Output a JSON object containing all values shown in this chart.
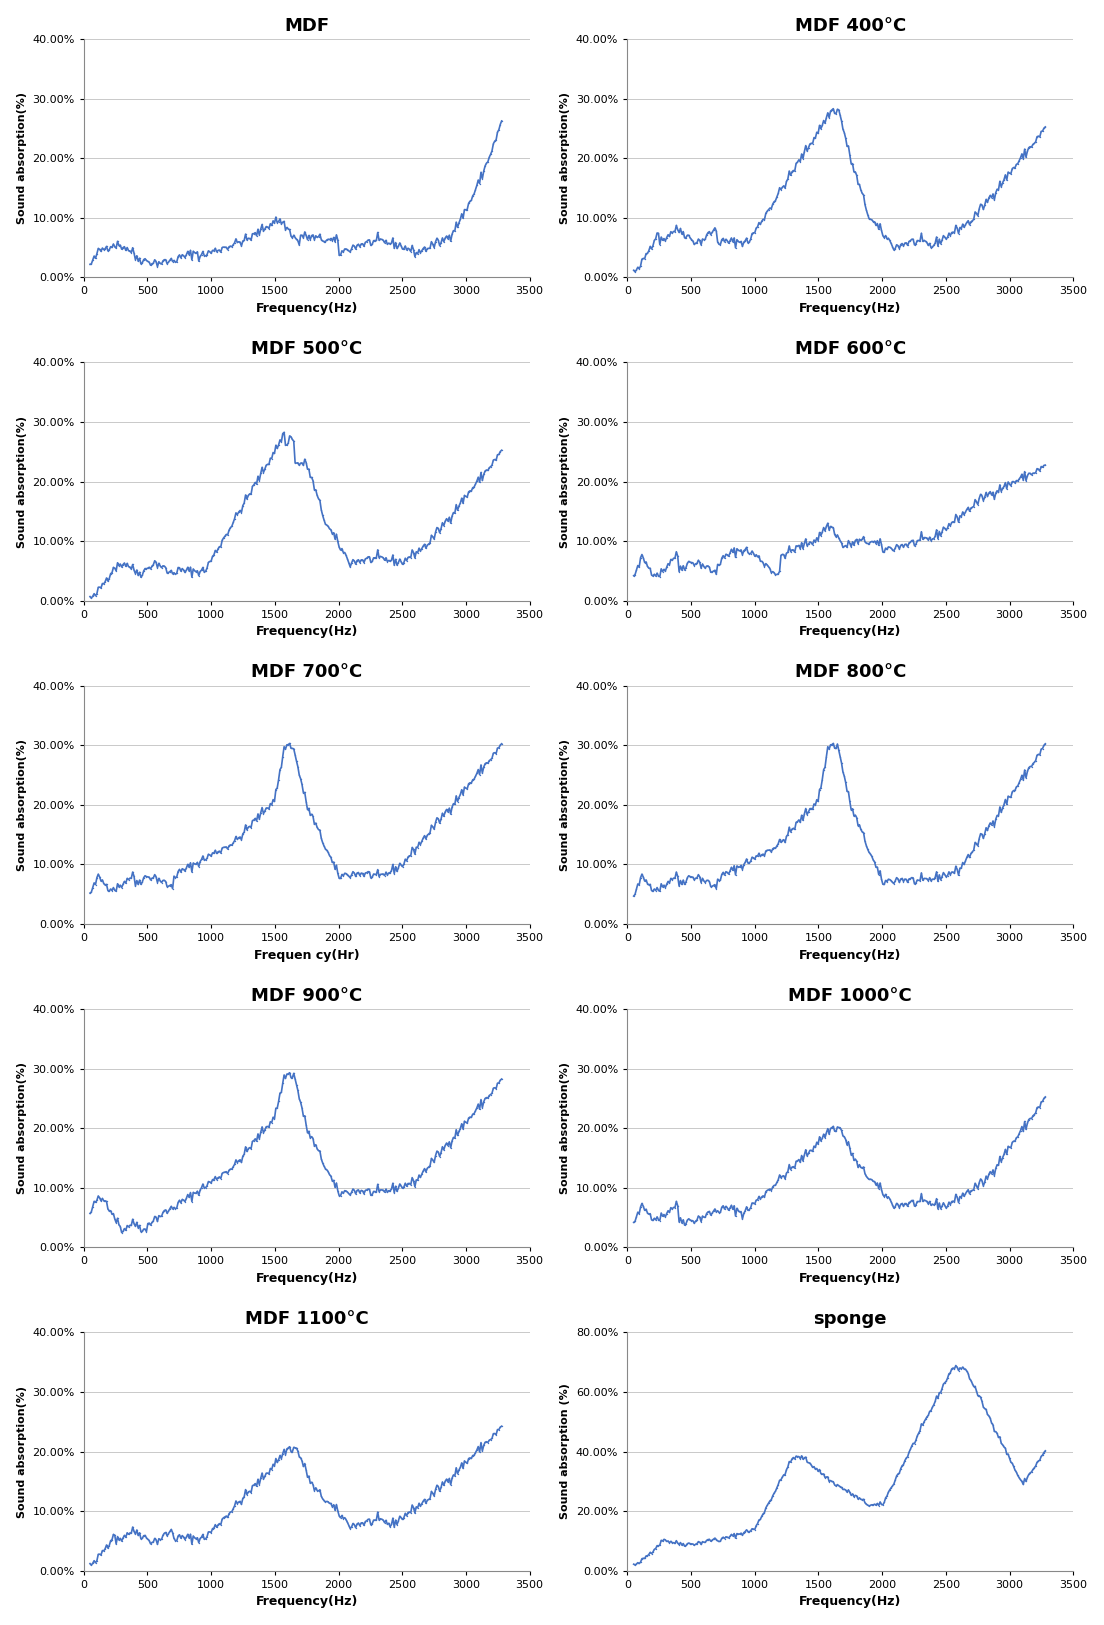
{
  "panels": [
    {
      "title": "MDF",
      "xlabel": "Frequency(Hz)",
      "ylabel": "Sound absorption(%)",
      "xlim": [
        0,
        3500
      ],
      "ylim": [
        0,
        0.4
      ],
      "yticks": [
        0.0,
        0.1,
        0.2,
        0.3,
        0.4
      ],
      "xticks": [
        0,
        500,
        1000,
        1500,
        2000,
        2500,
        3000,
        3500
      ],
      "curve_type": "MDF"
    },
    {
      "title": "MDF 400°C",
      "xlabel": "Frequency(Hz)",
      "ylabel": "Sound absorption(%)",
      "xlim": [
        0,
        3500
      ],
      "ylim": [
        0,
        0.4
      ],
      "yticks": [
        0.0,
        0.1,
        0.2,
        0.3,
        0.4
      ],
      "xticks": [
        0,
        500,
        1000,
        1500,
        2000,
        2500,
        3000,
        3500
      ],
      "curve_type": "MDF400"
    },
    {
      "title": "MDF 500°C",
      "xlabel": "Frequency(Hz)",
      "ylabel": "Sound absorption(%)",
      "xlim": [
        0,
        3500
      ],
      "ylim": [
        0,
        0.4
      ],
      "yticks": [
        0.0,
        0.1,
        0.2,
        0.3,
        0.4
      ],
      "xticks": [
        0,
        500,
        1000,
        1500,
        2000,
        2500,
        3000,
        3500
      ],
      "curve_type": "MDF500"
    },
    {
      "title": "MDF 600°C",
      "xlabel": "Frequency(Hz)",
      "ylabel": "Sound absorption(%)",
      "xlim": [
        0,
        3500
      ],
      "ylim": [
        0,
        0.4
      ],
      "yticks": [
        0.0,
        0.1,
        0.2,
        0.3,
        0.4
      ],
      "xticks": [
        0,
        500,
        1000,
        1500,
        2000,
        2500,
        3000,
        3500
      ],
      "curve_type": "MDF600"
    },
    {
      "title": "MDF 700°C",
      "xlabel": "Frequen cy(Hr)",
      "ylabel": "Sound absorption(%)",
      "xlim": [
        0,
        3500
      ],
      "ylim": [
        0,
        0.4
      ],
      "yticks": [
        0.0,
        0.1,
        0.2,
        0.3,
        0.4
      ],
      "xticks": [
        0,
        500,
        1000,
        1500,
        2000,
        2500,
        3000,
        3500
      ],
      "curve_type": "MDF700"
    },
    {
      "title": "MDF 800°C",
      "xlabel": "Frequency(Hz)",
      "ylabel": "Sound absorption(%)",
      "xlim": [
        0,
        3500
      ],
      "ylim": [
        0,
        0.4
      ],
      "yticks": [
        0.0,
        0.1,
        0.2,
        0.3,
        0.4
      ],
      "xticks": [
        0,
        500,
        1000,
        1500,
        2000,
        2500,
        3000,
        3500
      ],
      "curve_type": "MDF800"
    },
    {
      "title": "MDF 900°C",
      "xlabel": "Frequency(Hz)",
      "ylabel": "Sound absorption(%)",
      "xlim": [
        0,
        3500
      ],
      "ylim": [
        0,
        0.4
      ],
      "yticks": [
        0.0,
        0.1,
        0.2,
        0.3,
        0.4
      ],
      "xticks": [
        0,
        500,
        1000,
        1500,
        2000,
        2500,
        3000,
        3500
      ],
      "curve_type": "MDF900"
    },
    {
      "title": "MDF 1000°C",
      "xlabel": "Frequency(Hz)",
      "ylabel": "Sound absorption(%)",
      "xlim": [
        0,
        3500
      ],
      "ylim": [
        0,
        0.4
      ],
      "yticks": [
        0.0,
        0.1,
        0.2,
        0.3,
        0.4
      ],
      "xticks": [
        0,
        500,
        1000,
        1500,
        2000,
        2500,
        3000,
        3500
      ],
      "curve_type": "MDF1000"
    },
    {
      "title": "MDF 1100°C",
      "xlabel": "Frequency(Hz)",
      "ylabel": "Sound absorption(%)",
      "xlim": [
        0,
        3500
      ],
      "ylim": [
        0,
        0.4
      ],
      "yticks": [
        0.0,
        0.1,
        0.2,
        0.3,
        0.4
      ],
      "xticks": [
        0,
        500,
        1000,
        1500,
        2000,
        2500,
        3000,
        3500
      ],
      "curve_type": "MDF1100"
    },
    {
      "title": "sponge",
      "xlabel": "Frequency(Hz)",
      "ylabel": "Sound absorption (%)",
      "xlim": [
        0,
        3500
      ],
      "ylim": [
        0,
        0.8
      ],
      "yticks": [
        0.0,
        0.2,
        0.4,
        0.6,
        0.8
      ],
      "xticks": [
        0,
        500,
        1000,
        1500,
        2000,
        2500,
        3000,
        3500
      ],
      "curve_type": "sponge"
    }
  ],
  "line_color": "#4472C4",
  "bg_color": "#FFFFFF",
  "grid_color": "#C0C0C0"
}
